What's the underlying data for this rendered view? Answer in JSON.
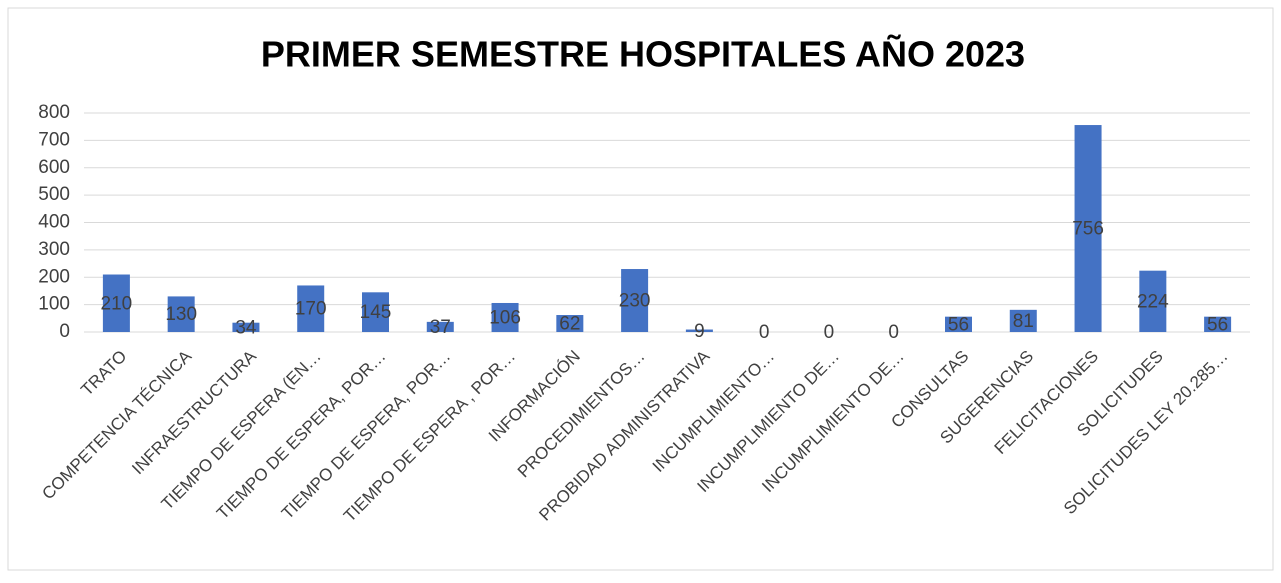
{
  "chart_data": {
    "type": "bar",
    "title": "PRIMER SEMESTRE HOSPITALES AÑO 2023",
    "categories": [
      "TRATO",
      "COMPETENCIA TÉCNICA",
      "INFRAESTRUCTURA",
      "TIEMPO DE ESPERA (EN…",
      "TIEMPO DE ESPERA, POR…",
      "TIEMPO DE ESPERA, POR…",
      "TIEMPO DE ESPERA , POR…",
      "INFORMACIÓN",
      "PROCEDIMIENTOS…",
      "PROBIDAD ADMINISTRATIVA",
      "INCUMPLIMIENTO…",
      "INCUMPLIMIENTO DE…",
      "INCUMPLIMIENTO DE…",
      "CONSULTAS",
      "SUGERENCIAS",
      "FELICITACIONES",
      "SOLICITUDES",
      "SOLICITUDES LEY 20.285…"
    ],
    "values": [
      210,
      130,
      34,
      170,
      145,
      37,
      106,
      62,
      230,
      9,
      0,
      0,
      0,
      56,
      81,
      756,
      224,
      56
    ],
    "color": "#4472c4",
    "ylim": [
      0,
      800
    ],
    "yticks": [
      0,
      100,
      200,
      300,
      400,
      500,
      600,
      700,
      800
    ],
    "grid": true
  }
}
